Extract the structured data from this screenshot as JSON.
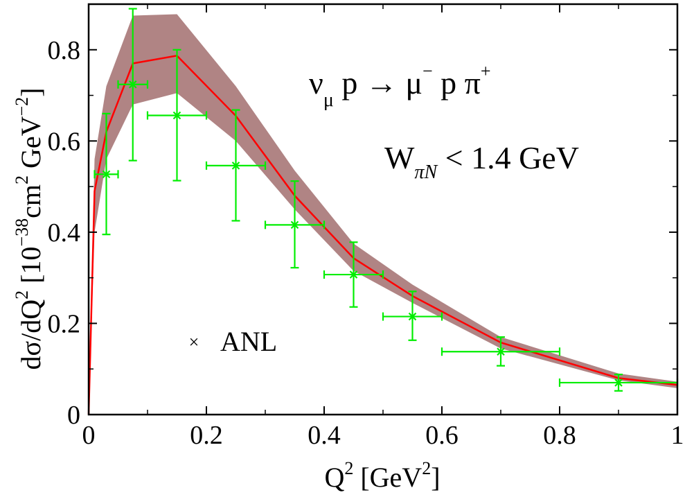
{
  "chart_data": {
    "type": "line",
    "title": "",
    "xlim": [
      0,
      1
    ],
    "ylim": [
      0,
      0.9
    ],
    "x_ticks": [
      {
        "value": 0,
        "label": "0"
      },
      {
        "value": 0.2,
        "label": "0.2"
      },
      {
        "value": 0.4,
        "label": "0.4"
      },
      {
        "value": 0.6,
        "label": "0.6"
      },
      {
        "value": 0.8,
        "label": "0.8"
      },
      {
        "value": 1,
        "label": "1"
      }
    ],
    "y_ticks": [
      {
        "value": 0,
        "label": "0"
      },
      {
        "value": 0.2,
        "label": "0.2"
      },
      {
        "value": 0.4,
        "label": "0.4"
      },
      {
        "value": 0.6,
        "label": "0.6"
      },
      {
        "value": 0.8,
        "label": "0.8"
      }
    ],
    "xlabel": {
      "main": "Q",
      "sup": "2",
      "unit_open": " [GeV",
      "unit_sup": "2",
      "unit_close": "]"
    },
    "ylabel": {
      "prefix": "dσ/dQ",
      "prefix_sup": "2",
      "bracket_open": "  [10",
      "exp1": "−38",
      "cm": "cm",
      "cm_sup": "2",
      "gev": " GeV",
      "exp2": "−2",
      "bracket_close": "]"
    },
    "annotations": {
      "reaction": {
        "nu": "ν",
        "nu_sub": "μ",
        "text1": " p → μ",
        "mu_sup": "−",
        "text2": " p π",
        "pi_sup": "+"
      },
      "cut": {
        "W": "W",
        "W_sub": "πN",
        "text": " < 1.4 GeV"
      }
    },
    "legend": {
      "symbol": "×",
      "label": "ANL",
      "position": "lower-left"
    },
    "colors": {
      "band": "#b08484",
      "curve": "#ff0000",
      "data": "#00ee00",
      "axis": "#000000"
    },
    "series": [
      {
        "name": "theory-band",
        "kind": "band",
        "x": [
          0,
          0.01,
          0.03,
          0.075,
          0.15,
          0.25,
          0.35,
          0.45,
          0.55,
          0.7,
          0.9,
          1.0
        ],
        "low": [
          0,
          0.4,
          0.56,
          0.68,
          0.705,
          0.6,
          0.45,
          0.315,
          0.245,
          0.145,
          0.075,
          0.058
        ],
        "high": [
          0,
          0.56,
          0.72,
          0.875,
          0.878,
          0.72,
          0.535,
          0.375,
          0.285,
          0.17,
          0.09,
          0.072
        ]
      },
      {
        "name": "theory",
        "kind": "line",
        "x": [
          0,
          0.01,
          0.03,
          0.075,
          0.15,
          0.25,
          0.35,
          0.45,
          0.55,
          0.7,
          0.9,
          1.0
        ],
        "y": [
          0,
          0.49,
          0.62,
          0.77,
          0.787,
          0.655,
          0.48,
          0.343,
          0.26,
          0.158,
          0.08,
          0.065
        ]
      },
      {
        "name": "ANL",
        "kind": "errorbar",
        "points": [
          {
            "x": 0.03,
            "y": 0.527,
            "xerr": 0.02,
            "ylo": 0.395,
            "yhi": 0.66
          },
          {
            "x": 0.075,
            "y": 0.724,
            "xerr": 0.025,
            "ylo": 0.557,
            "yhi": 0.89
          },
          {
            "x": 0.15,
            "y": 0.656,
            "xerr": 0.05,
            "ylo": 0.513,
            "yhi": 0.8
          },
          {
            "x": 0.25,
            "y": 0.546,
            "xerr": 0.05,
            "ylo": 0.425,
            "yhi": 0.668
          },
          {
            "x": 0.35,
            "y": 0.416,
            "xerr": 0.05,
            "ylo": 0.322,
            "yhi": 0.512
          },
          {
            "x": 0.45,
            "y": 0.307,
            "xerr": 0.05,
            "ylo": 0.236,
            "yhi": 0.378
          },
          {
            "x": 0.55,
            "y": 0.215,
            "xerr": 0.05,
            "ylo": 0.163,
            "yhi": 0.27
          },
          {
            "x": 0.7,
            "y": 0.138,
            "xerr": 0.1,
            "ylo": 0.107,
            "yhi": 0.17
          },
          {
            "x": 0.9,
            "y": 0.07,
            "xerr": 0.1,
            "ylo": 0.052,
            "yhi": 0.088
          }
        ]
      }
    ]
  }
}
